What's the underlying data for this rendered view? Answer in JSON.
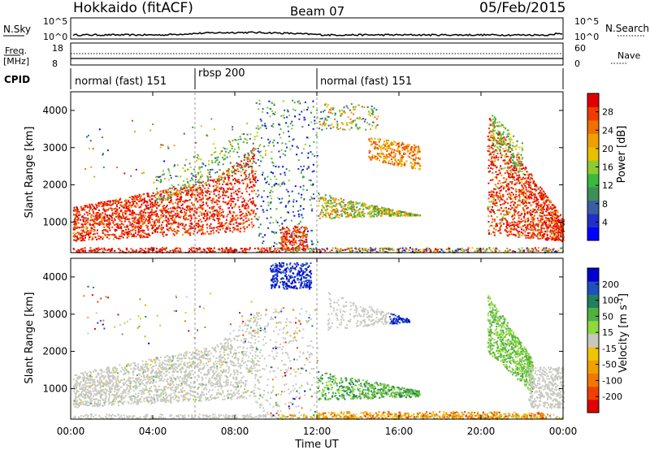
{
  "header": {
    "station": "Hokkaido (fitACF)",
    "beam": "Beam 07",
    "date": "05/Feb/2015"
  },
  "noise_panel": {
    "left_label": "N.Sky",
    "right_label": "N.Search",
    "left_ticks": [
      "10^5",
      "10^0"
    ],
    "right_ticks": [
      "10^5",
      "10^0"
    ]
  },
  "freq_panel": {
    "left_label_1": "Freq.",
    "left_label_2": "[MHz]",
    "right_label": "Nave",
    "left_ticks": [
      "18",
      "8"
    ],
    "right_ticks": [
      "60",
      "0"
    ]
  },
  "cpid": {
    "label": "CPID",
    "segments": [
      {
        "name": "normal (fast) 151",
        "start_h": 0,
        "end_h": 6
      },
      {
        "name": "rbsp 200",
        "start_h": 6,
        "end_h": 12
      },
      {
        "name": "normal (fast) 151",
        "start_h": 12,
        "end_h": 24
      }
    ]
  },
  "chart_data": [
    {
      "type": "heatmap",
      "title": "Power",
      "ylabel": "Slant Range [km]",
      "xlabel": "",
      "colorbar_label": "Power [dB]",
      "colorbar_ticks": [
        "4",
        "8",
        "12",
        "16",
        "20",
        "24",
        "28"
      ],
      "colorbar_colors": [
        "#0000ff",
        "#2030c8",
        "#3a5fa0",
        "#3d8f5a",
        "#3cb83c",
        "#8ccc30",
        "#e8c000",
        "#f0a000",
        "#f07000",
        "#f03c00",
        "#e00000"
      ],
      "xlim": [
        0,
        24
      ],
      "ylim": [
        180,
        4500
      ],
      "yticks": [
        1000,
        2000,
        3000,
        4000
      ],
      "ytick_labels": [
        "1000",
        "2000",
        "3000",
        "4000"
      ]
    },
    {
      "type": "heatmap",
      "title": "Velocity",
      "ylabel": "Slant Range [km]",
      "xlabel": "Time UT",
      "colorbar_label": "Velocity [m s-1]",
      "colorbar_ticks": [
        "-200",
        "-100",
        "-50",
        "-15",
        "15",
        "50",
        "100",
        "200"
      ],
      "colorbar_colors": [
        "#e00000",
        "#f04000",
        "#f07800",
        "#f0a000",
        "#f0c400",
        "#c8c8c0",
        "#90d840",
        "#50b040",
        "#208060",
        "#2050c0",
        "#0000d0"
      ],
      "xlim": [
        0,
        24
      ],
      "ylim": [
        180,
        4500
      ],
      "yticks": [
        1000,
        2000,
        3000,
        4000
      ],
      "ytick_labels": [
        "1000",
        "2000",
        "3000",
        "4000"
      ],
      "xticks": [
        0,
        4,
        8,
        12,
        16,
        20,
        24
      ],
      "xtick_labels": [
        "00:00",
        "04:00",
        "08:00",
        "12:00",
        "16:00",
        "20:00",
        "00:00"
      ]
    }
  ]
}
